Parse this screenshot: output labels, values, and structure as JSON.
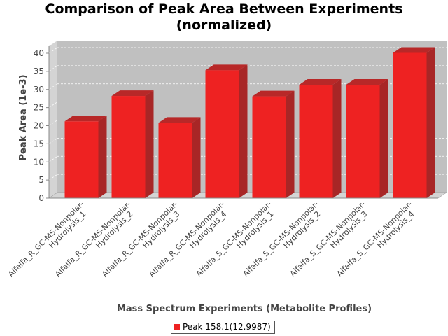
{
  "chart_data": {
    "type": "bar",
    "title": [
      "Comparison of Peak Area Between Experiments",
      "(normalized)"
    ],
    "xlabel": "Mass Spectrum Experiments (Metabolite Profiles)",
    "ylabel": "Peak Area (1e-3)",
    "categories": [
      [
        "Alfalfa_R_GC-MS-Nonpolar-",
        "Hydrolysis_1"
      ],
      [
        "Alfalfa_R_GC-MS-Nonpolar-",
        "Hydrolysis_2"
      ],
      [
        "Alfalfa_R_GC-MS-Nonpolar-",
        "Hydrolysis_3"
      ],
      [
        "Alfalfa_R_GC-MS-Nonpolar-",
        "Hydrolysis_4"
      ],
      [
        "Alfalfa_S_GC-MS-Nonpolar-",
        "Hydrolysis_1"
      ],
      [
        "Alfalfa_S_GC-MS-Nonpolar-",
        "Hydrolysis_2"
      ],
      [
        "Alfalfa_S_GC-MS-Nonpolar-",
        "Hydrolysis_3"
      ],
      [
        "Alfalfa_S_GC-MS-Nonpolar-",
        "Hydrolysis_4"
      ]
    ],
    "series": [
      {
        "name": "Peak 158.1(12.9987)",
        "values": [
          21.2,
          28.2,
          20.8,
          35.3,
          28.1,
          31.3,
          31.3,
          40.1
        ],
        "color": "#ee2222"
      }
    ],
    "ylim": [
      0,
      40
    ],
    "yticks": [
      0,
      5,
      10,
      15,
      20,
      25,
      30,
      35,
      40
    ],
    "grid": true,
    "legend_position": "bottom",
    "style": "3d-bar",
    "colors": {
      "plot_background": "#c0c0c0",
      "plot_side": "#d4d4d4",
      "bar_front": "#ee2222",
      "bar_top": "#b82828",
      "bar_side": "#a82626"
    }
  }
}
